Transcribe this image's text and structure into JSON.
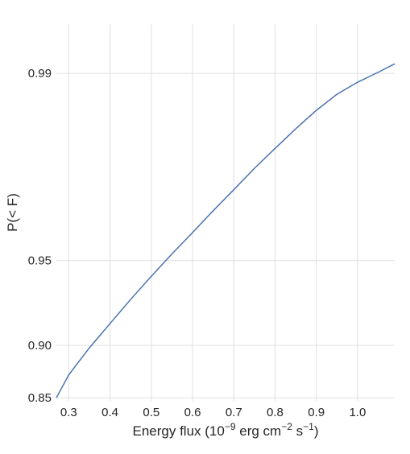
{
  "chart_data": {
    "type": "line",
    "xlabel": {
      "prefix": "Energy flux (10",
      "exp1": "−9",
      "mid1": " erg cm",
      "exp2": "−2",
      "mid2": " s",
      "exp3": "−1",
      "suffix": ")"
    },
    "ylabel": "P(< F)",
    "xlim": [
      0.27,
      1.09
    ],
    "ylim": [
      0.8465,
      0.9935
    ],
    "ytick_scale": "logit",
    "xticks": [
      {
        "value": 0.3,
        "label": "0.3"
      },
      {
        "value": 0.4,
        "label": "0.4"
      },
      {
        "value": 0.5,
        "label": "0.5"
      },
      {
        "value": 0.6,
        "label": "0.6"
      },
      {
        "value": 0.7,
        "label": "0.7"
      },
      {
        "value": 0.8,
        "label": "0.8"
      },
      {
        "value": 0.9,
        "label": "0.9"
      },
      {
        "value": 1.0,
        "label": "1.0"
      }
    ],
    "yticks": [
      {
        "value": 0.85,
        "label": "0.85"
      },
      {
        "value": 0.9,
        "label": "0.90"
      },
      {
        "value": 0.95,
        "label": "0.95"
      },
      {
        "value": 0.99,
        "label": "0.99"
      }
    ],
    "grid": true,
    "series": [
      {
        "color": "#4c72b0",
        "x": [
          0.27,
          0.3,
          0.35,
          0.4,
          0.45,
          0.5,
          0.55,
          0.6,
          0.65,
          0.7,
          0.75,
          0.8,
          0.85,
          0.9,
          0.95,
          1.0,
          1.05,
          1.09
        ],
        "y": [
          0.85,
          0.874,
          0.898,
          0.916,
          0.931,
          0.943,
          0.9527,
          0.9605,
          0.9672,
          0.9726,
          0.9772,
          0.9808,
          0.9838,
          0.9862,
          0.988,
          0.9892,
          0.9901,
          0.9908
        ]
      }
    ]
  }
}
